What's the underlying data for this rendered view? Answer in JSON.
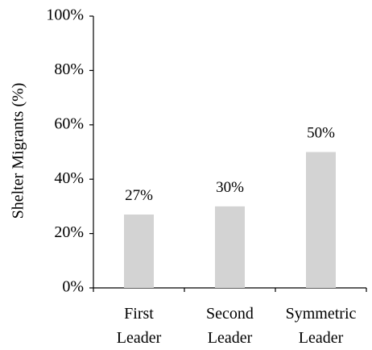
{
  "chart_data": {
    "type": "bar",
    "title": "",
    "xlabel": "",
    "ylabel": "Shelter Migrants (%)",
    "categories": [
      [
        "First",
        "Leader"
      ],
      [
        "Second",
        "Leader"
      ],
      [
        "Symmetric",
        "Leader"
      ]
    ],
    "values": [
      27,
      30,
      50
    ],
    "data_labels": [
      "27%",
      "30%",
      "50%"
    ],
    "ylim": [
      0,
      100
    ],
    "yticks": [
      0,
      20,
      40,
      60,
      80,
      100
    ],
    "ytick_labels": [
      "0%",
      "20%",
      "40%",
      "60%",
      "80%",
      "100%"
    ],
    "grid": false,
    "legend": "none",
    "colors": {
      "bar": "#d3d3d3",
      "axis": "#000000",
      "text": "#000000"
    }
  }
}
